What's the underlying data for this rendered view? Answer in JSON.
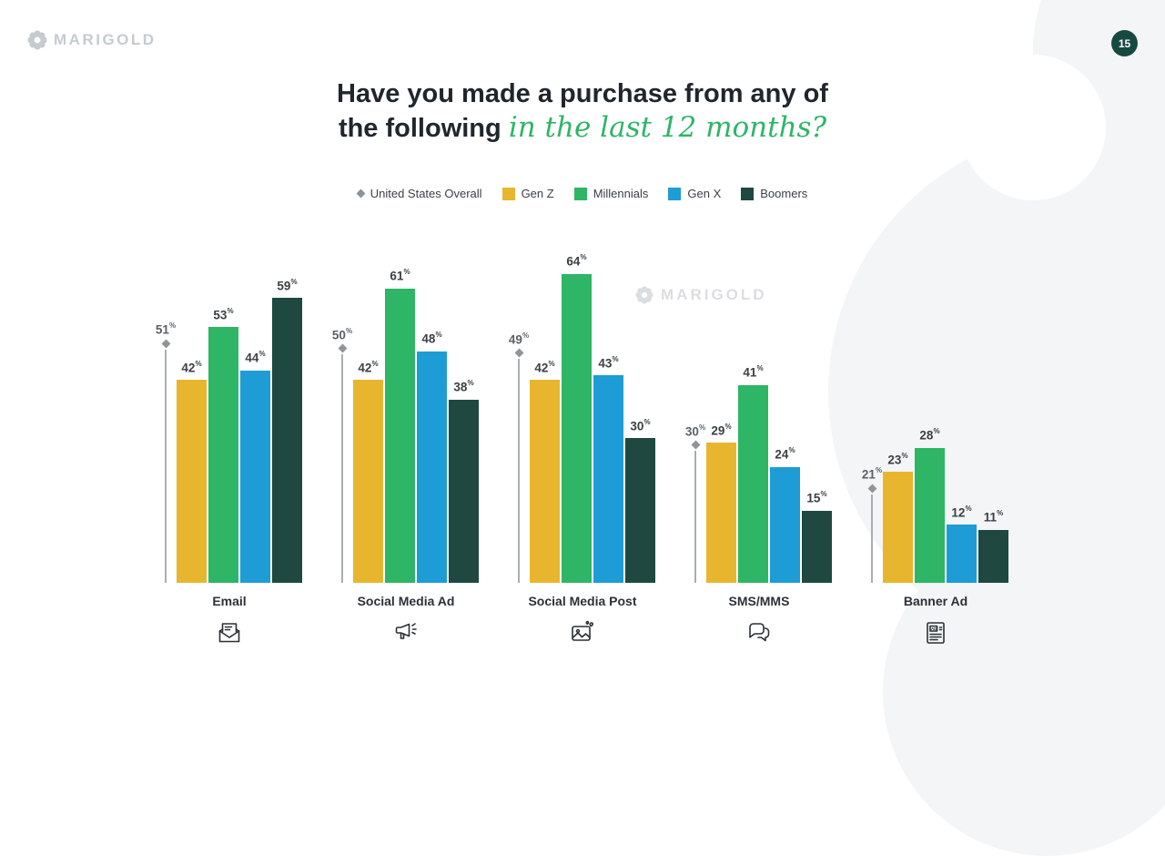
{
  "page": {
    "brand": "MARIGOLD",
    "watermark": "MARIGOLD",
    "number": "15"
  },
  "title": {
    "line1": "Have you made a purchase from any of",
    "line2_dark": "the following",
    "line2_accent": "in the last 12 months?"
  },
  "legend": {
    "overall_label": "United States Overall",
    "overall_color": "#8d9297"
  },
  "colors": {
    "gen_z": "#e8b62e",
    "millennials": "#2eb566",
    "gen_x": "#1e9cd6",
    "boomers": "#1e4840",
    "badge": "#164a40",
    "accent_green": "#2db567"
  },
  "chart_data": {
    "type": "bar",
    "title": "Have you made a purchase from any of the following in the last 12 months?",
    "unit": "%",
    "ylim": [
      0,
      70
    ],
    "categories": [
      "Email",
      "Social Media Ad",
      "Social Media Post",
      "SMS/MMS",
      "Banner Ad"
    ],
    "category_icons": [
      "email-icon",
      "megaphone-icon",
      "image-post-icon",
      "chat-icon",
      "banner-ad-icon"
    ],
    "overall": {
      "name": "United States Overall",
      "values": [
        51,
        50,
        49,
        30,
        21
      ]
    },
    "series": [
      {
        "name": "Gen Z",
        "color": "#e8b62e",
        "values": [
          42,
          42,
          42,
          29,
          23
        ]
      },
      {
        "name": "Millennials",
        "color": "#2eb566",
        "values": [
          53,
          61,
          64,
          41,
          28
        ]
      },
      {
        "name": "Gen X",
        "color": "#1e9cd6",
        "values": [
          44,
          48,
          43,
          24,
          12
        ]
      },
      {
        "name": "Boomers",
        "color": "#1e4840",
        "values": [
          59,
          38,
          30,
          15,
          11
        ]
      }
    ]
  }
}
